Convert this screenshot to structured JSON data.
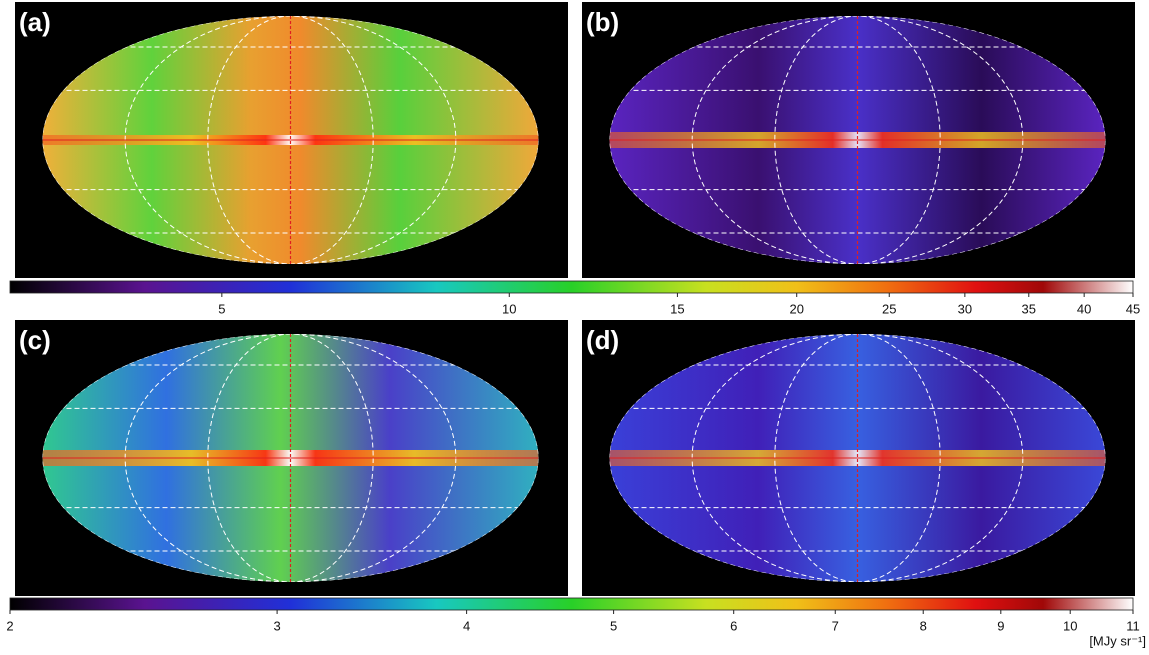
{
  "panels": [
    {
      "label": "(a)"
    },
    {
      "label": "(b)"
    },
    {
      "label": "(c)"
    },
    {
      "label": "(d)"
    }
  ],
  "colorbars": [
    {
      "scale": "log",
      "xlim": [
        3,
        45
      ],
      "xticks": [
        5,
        10,
        15,
        20,
        25,
        30,
        35,
        40,
        45
      ]
    },
    {
      "scale": "log",
      "xlim": [
        2,
        11
      ],
      "xticks": [
        2,
        3,
        4,
        5,
        6,
        7,
        8,
        9,
        10,
        11
      ],
      "label": "[MJy sr⁻¹]"
    }
  ]
}
